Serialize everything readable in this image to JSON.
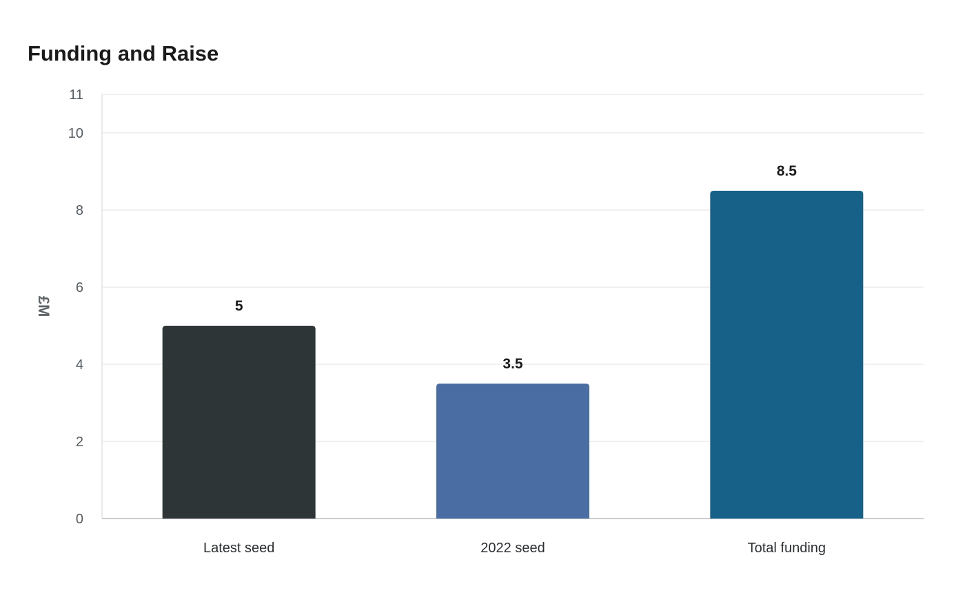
{
  "chart_data": {
    "type": "bar",
    "title": "Funding and Raise",
    "xlabel": "",
    "ylabel": "£M",
    "ylim": [
      0,
      11
    ],
    "yticks": [
      0,
      2,
      4,
      6,
      8,
      10,
      11
    ],
    "grid": true,
    "categories": [
      "Latest seed",
      "2022 seed",
      "Total funding"
    ],
    "values": [
      5,
      3.5,
      8.5
    ],
    "data_labels": [
      "5",
      "3.5",
      "8.5"
    ],
    "colors": [
      "#2e3537",
      "#4a6ea3",
      "#176189"
    ]
  }
}
